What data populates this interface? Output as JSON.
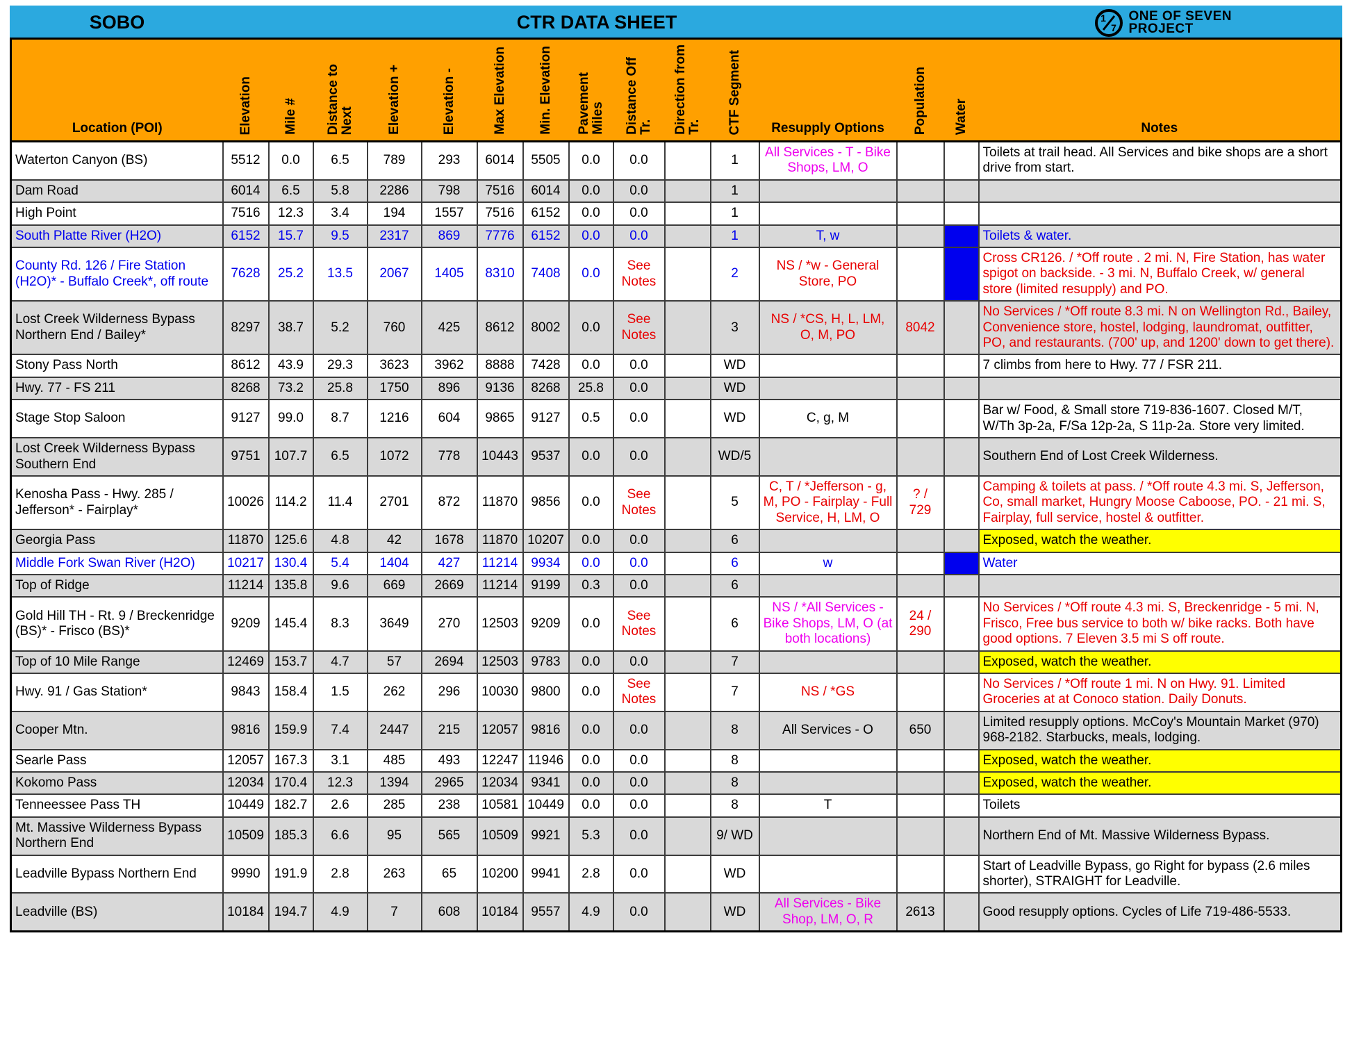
{
  "header": {
    "direction": "SOBO",
    "title": "CTR DATA SHEET",
    "logo_mark_numerator": "1",
    "logo_mark_denominator": "7",
    "logo_line1": "ONE OF SEVEN",
    "logo_line2": "PROJECT"
  },
  "colors": {
    "top_bar": "#2BA9DF",
    "header_bg": "#FFA000",
    "row_shade": "#D9D9D9",
    "black": "#000000",
    "blue": "#0000EE",
    "red": "#E80000",
    "magenta": "#EE00EE",
    "water_fill": "#0000EE",
    "highlight_yellow": "#FFFF00"
  },
  "columns": [
    {
      "key": "location",
      "label": "Location (POI)",
      "rotated": false
    },
    {
      "key": "elevation",
      "label": "Elevation",
      "rotated": true
    },
    {
      "key": "mile",
      "label": "Mile #",
      "rotated": true
    },
    {
      "key": "dist_next",
      "label": "Distance to\nNext",
      "rotated": true
    },
    {
      "key": "elev_plus",
      "label": "Elevation +",
      "rotated": true
    },
    {
      "key": "elev_minus",
      "label": "Elevation -",
      "rotated": true
    },
    {
      "key": "max_elev",
      "label": "Max Elevation",
      "rotated": true
    },
    {
      "key": "min_elev",
      "label": "Min. Elevation",
      "rotated": true
    },
    {
      "key": "pavement",
      "label": "Pavement\nMiles",
      "rotated": true
    },
    {
      "key": "dist_off",
      "label": "Distance Off\nTr.",
      "rotated": true
    },
    {
      "key": "direction",
      "label": "Direction from\nTr.",
      "rotated": true
    },
    {
      "key": "segment",
      "label": "CTF Segment",
      "rotated": true
    },
    {
      "key": "resupply",
      "label": "Resupply Options",
      "rotated": false
    },
    {
      "key": "population",
      "label": "Population",
      "rotated": true
    },
    {
      "key": "water",
      "label": "Water",
      "rotated": true
    },
    {
      "key": "notes",
      "label": "Notes",
      "rotated": false
    }
  ],
  "rows": [
    {
      "location": "Waterton Canyon (BS)",
      "values": {
        "elevation": "5512",
        "mile": "0.0",
        "dist_next": "6.5",
        "elev_plus": "789",
        "elev_minus": "293",
        "max_elev": "6014",
        "min_elev": "5505",
        "pavement": "0.0",
        "dist_off": "0.0",
        "direction": "",
        "segment": "1"
      },
      "resupply": {
        "text": "All Services - T - Bike Shops, LM, O",
        "color": "magenta"
      },
      "notes": {
        "text": "Toilets at trail head.  All Services and bike shops are a short drive from start."
      }
    },
    {
      "location": "Dam Road",
      "values": {
        "elevation": "6014",
        "mile": "6.5",
        "dist_next": "5.8",
        "elev_plus": "2286",
        "elev_minus": "798",
        "max_elev": "7516",
        "min_elev": "6014",
        "pavement": "0.0",
        "dist_off": "0.0",
        "direction": "",
        "segment": "1"
      }
    },
    {
      "location": "High Point",
      "values": {
        "elevation": "7516",
        "mile": "12.3",
        "dist_next": "3.4",
        "elev_plus": "194",
        "elev_minus": "1557",
        "max_elev": "7516",
        "min_elev": "6152",
        "pavement": "0.0",
        "dist_off": "0.0",
        "direction": "",
        "segment": "1"
      }
    },
    {
      "location": "South Platte River (H2O)",
      "base_color": "blue",
      "values": {
        "elevation": "6152",
        "mile": "15.7",
        "dist_next": "9.5",
        "elev_plus": "2317",
        "elev_minus": "869",
        "max_elev": "7776",
        "min_elev": "6152",
        "pavement": "0.0",
        "dist_off": "0.0",
        "direction": "",
        "segment": "1"
      },
      "resupply": {
        "text": "T, w",
        "color": "blue"
      },
      "water_fill": true,
      "notes": {
        "text": "Toilets & water.",
        "color": "blue"
      }
    },
    {
      "location": "County Rd. 126 / Fire Station (H2O)* - Buffalo Creek*, off route",
      "base_color": "blue",
      "values": {
        "elevation": "7628",
        "mile": "25.2",
        "dist_next": "13.5",
        "elev_plus": "2067",
        "elev_minus": "1405",
        "max_elev": "8310",
        "min_elev": "7408",
        "pavement": "0.0",
        "dist_off": "See Notes",
        "direction": "",
        "segment": "2"
      },
      "dist_off_color": "red",
      "resupply": {
        "text": "NS / *w - General Store, PO",
        "color": "red"
      },
      "water_fill": true,
      "notes": {
        "text": "Cross CR126. / *Off route . 2 mi. N, Fire Station, has water spigot on backside. -  3 mi. N, Buffalo Creek, w/ general store (limited resupply) and PO.",
        "color": "red"
      }
    },
    {
      "location": "Lost Creek Wilderness Bypass Northern End / Bailey*",
      "values": {
        "elevation": "8297",
        "mile": "38.7",
        "dist_next": "5.2",
        "elev_plus": "760",
        "elev_minus": "425",
        "max_elev": "8612",
        "min_elev": "8002",
        "pavement": "0.0",
        "dist_off": "See Notes",
        "direction": "",
        "segment": "3"
      },
      "dist_off_color": "red",
      "resupply": {
        "text": "NS / *CS, H, L, LM, O, M, PO",
        "color": "red"
      },
      "population": {
        "text": "8042",
        "color": "red"
      },
      "notes": {
        "text": "No Services / *Off route 8.3 mi. N on Wellington Rd., Bailey, Convenience store, hostel, lodging, laundromat, outfitter, PO, and restaurants. (700' up, and 1200' down to get there).",
        "color": "red"
      }
    },
    {
      "location": "Stony Pass North",
      "values": {
        "elevation": "8612",
        "mile": "43.9",
        "dist_next": "29.3",
        "elev_plus": "3623",
        "elev_minus": "3962",
        "max_elev": "8888",
        "min_elev": "7428",
        "pavement": "0.0",
        "dist_off": "0.0",
        "direction": "",
        "segment": "WD"
      },
      "notes": {
        "text": "7 climbs from here to Hwy. 77 / FSR 211."
      }
    },
    {
      "location": "Hwy. 77 - FS 211",
      "values": {
        "elevation": "8268",
        "mile": "73.2",
        "dist_next": "25.8",
        "elev_plus": "1750",
        "elev_minus": "896",
        "max_elev": "9136",
        "min_elev": "8268",
        "pavement": "25.8",
        "dist_off": "0.0",
        "direction": "",
        "segment": "WD"
      }
    },
    {
      "location": "Stage Stop Saloon",
      "values": {
        "elevation": "9127",
        "mile": "99.0",
        "dist_next": "8.7",
        "elev_plus": "1216",
        "elev_minus": "604",
        "max_elev": "9865",
        "min_elev": "9127",
        "pavement": "0.5",
        "dist_off": "0.0",
        "direction": "",
        "segment": "WD"
      },
      "resupply": {
        "text": "C, g, M"
      },
      "notes": {
        "text": "Bar w/ Food, & Small store 719-836-1607. Closed M/T, W/Th 3p-2a, F/Sa 12p-2a, S 11p-2a. Store very limited."
      }
    },
    {
      "location": "Lost Creek Wilderness Bypass Southern End",
      "values": {
        "elevation": "9751",
        "mile": "107.7",
        "dist_next": "6.5",
        "elev_plus": "1072",
        "elev_minus": "778",
        "max_elev": "10443",
        "min_elev": "9537",
        "pavement": "0.0",
        "dist_off": "0.0",
        "direction": "",
        "segment": "WD/5"
      },
      "notes": {
        "text": "Southern End of Lost Creek Wilderness."
      }
    },
    {
      "location": "Kenosha Pass - Hwy. 285 / Jefferson* - Fairplay*",
      "values": {
        "elevation": "10026",
        "mile": "114.2",
        "dist_next": "11.4",
        "elev_plus": "2701",
        "elev_minus": "872",
        "max_elev": "11870",
        "min_elev": "9856",
        "pavement": "0.0",
        "dist_off": "See Notes",
        "direction": "",
        "segment": "5"
      },
      "dist_off_color": "red",
      "resupply": {
        "text": "C, T / *Jefferson - g, M, PO - Fairplay - Full Service, H, LM, O",
        "color": "red"
      },
      "population": {
        "text": "? / 729",
        "color": "red"
      },
      "notes": {
        "text": "Camping & toilets at pass. / *Off route 4.3 mi. S, Jefferson, Co, small market, Hungry Moose Caboose, PO. - 21 mi. S, Fairplay, full service, hostel & outfitter.",
        "color": "red"
      }
    },
    {
      "location": "Georgia Pass",
      "values": {
        "elevation": "11870",
        "mile": "125.6",
        "dist_next": "4.8",
        "elev_plus": "42",
        "elev_minus": "1678",
        "max_elev": "11870",
        "min_elev": "10207",
        "pavement": "0.0",
        "dist_off": "0.0",
        "direction": "",
        "segment": "6"
      },
      "notes": {
        "text": "Exposed, watch the weather.",
        "highlight": true
      }
    },
    {
      "location": "Middle Fork Swan River (H2O)",
      "base_color": "blue",
      "values": {
        "elevation": "10217",
        "mile": "130.4",
        "dist_next": "5.4",
        "elev_plus": "1404",
        "elev_minus": "427",
        "max_elev": "11214",
        "min_elev": "9934",
        "pavement": "0.0",
        "dist_off": "0.0",
        "direction": "",
        "segment": "6"
      },
      "resupply": {
        "text": "w",
        "color": "blue"
      },
      "water_fill": true,
      "notes": {
        "text": "Water",
        "color": "blue"
      }
    },
    {
      "location": "Top of Ridge",
      "values": {
        "elevation": "11214",
        "mile": "135.8",
        "dist_next": "9.6",
        "elev_plus": "669",
        "elev_minus": "2669",
        "max_elev": "11214",
        "min_elev": "9199",
        "pavement": "0.3",
        "dist_off": "0.0",
        "direction": "",
        "segment": "6"
      }
    },
    {
      "location": "Gold Hill TH - Rt. 9 / Breckenridge (BS)* - Frisco (BS)*",
      "values": {
        "elevation": "9209",
        "mile": "145.4",
        "dist_next": "8.3",
        "elev_plus": "3649",
        "elev_minus": "270",
        "max_elev": "12503",
        "min_elev": "9209",
        "pavement": "0.0",
        "dist_off": "See Notes",
        "direction": "",
        "segment": "6"
      },
      "dist_off_color": "red",
      "resupply": {
        "text": "NS / *All Services - Bike Shops, LM, O (at both locations)",
        "color": "magenta"
      },
      "population": {
        "text": "24 / 290",
        "color": "red"
      },
      "notes": {
        "text": "No Services / *Off route 4.3 mi. S, Breckenridge  - 5 mi. N, Frisco, Free bus service to both w/ bike racks. Both have good options. 7 Eleven 3.5 mi S off route.",
        "color": "red"
      }
    },
    {
      "location": "Top of 10 Mile Range",
      "values": {
        "elevation": "12469",
        "mile": "153.7",
        "dist_next": "4.7",
        "elev_plus": "57",
        "elev_minus": "2694",
        "max_elev": "12503",
        "min_elev": "9783",
        "pavement": "0.0",
        "dist_off": "0.0",
        "direction": "",
        "segment": "7"
      },
      "notes": {
        "text": "Exposed, watch the weather.",
        "highlight": true
      }
    },
    {
      "location": "Hwy. 91 / Gas Station*",
      "values": {
        "elevation": "9843",
        "mile": "158.4",
        "dist_next": "1.5",
        "elev_plus": "262",
        "elev_minus": "296",
        "max_elev": "10030",
        "min_elev": "9800",
        "pavement": "0.0",
        "dist_off": "See Notes",
        "direction": "",
        "segment": "7"
      },
      "dist_off_color": "red",
      "resupply": {
        "text": "NS / *GS",
        "color": "red"
      },
      "notes": {
        "text": "No Services / *Off route 1 mi. N on Hwy. 91. Limited Groceries at at Conoco station. Daily Donuts.",
        "color": "red"
      }
    },
    {
      "location": "Cooper Mtn.",
      "values": {
        "elevation": "9816",
        "mile": "159.9",
        "dist_next": "7.4",
        "elev_plus": "2447",
        "elev_minus": "215",
        "max_elev": "12057",
        "min_elev": "9816",
        "pavement": "0.0",
        "dist_off": "0.0",
        "direction": "",
        "segment": "8"
      },
      "resupply": {
        "text": "All Services - O"
      },
      "population": {
        "text": "650"
      },
      "notes": {
        "text": "Limited resupply options. McCoy's Mountain Market (970) 968-2182. Starbucks, meals, lodging."
      }
    },
    {
      "location": "Searle Pass",
      "values": {
        "elevation": "12057",
        "mile": "167.3",
        "dist_next": "3.1",
        "elev_plus": "485",
        "elev_minus": "493",
        "max_elev": "12247",
        "min_elev": "11946",
        "pavement": "0.0",
        "dist_off": "0.0",
        "direction": "",
        "segment": "8"
      },
      "notes": {
        "text": "Exposed, watch the weather.",
        "highlight": true
      }
    },
    {
      "location": "Kokomo Pass",
      "values": {
        "elevation": "12034",
        "mile": "170.4",
        "dist_next": "12.3",
        "elev_plus": "1394",
        "elev_minus": "2965",
        "max_elev": "12034",
        "min_elev": "9341",
        "pavement": "0.0",
        "dist_off": "0.0",
        "direction": "",
        "segment": "8"
      },
      "notes": {
        "text": "Exposed, watch the weather.",
        "highlight": true
      }
    },
    {
      "location": "Tenneessee Pass TH",
      "values": {
        "elevation": "10449",
        "mile": "182.7",
        "dist_next": "2.6",
        "elev_plus": "285",
        "elev_minus": "238",
        "max_elev": "10581",
        "min_elev": "10449",
        "pavement": "0.0",
        "dist_off": "0.0",
        "direction": "",
        "segment": "8"
      },
      "resupply": {
        "text": "T"
      },
      "notes": {
        "text": "Toilets"
      }
    },
    {
      "location": "Mt. Massive Wilderness Bypass Northern End",
      "values": {
        "elevation": "10509",
        "mile": "185.3",
        "dist_next": "6.6",
        "elev_plus": "95",
        "elev_minus": "565",
        "max_elev": "10509",
        "min_elev": "9921",
        "pavement": "5.3",
        "dist_off": "0.0",
        "direction": "",
        "segment": "9/ WD"
      },
      "notes": {
        "text": "Northern End of Mt. Massive Wilderness Bypass."
      }
    },
    {
      "location": "Leadville Bypass Northern End",
      "values": {
        "elevation": "9990",
        "mile": "191.9",
        "dist_next": "2.8",
        "elev_plus": "263",
        "elev_minus": "65",
        "max_elev": "10200",
        "min_elev": "9941",
        "pavement": "2.8",
        "dist_off": "0.0",
        "direction": "",
        "segment": "WD"
      },
      "notes": {
        "text": "Start of Leadville Bypass, go Right for bypass (2.6 miles shorter), STRAIGHT for Leadville."
      }
    },
    {
      "location": "Leadville (BS)",
      "values": {
        "elevation": "10184",
        "mile": "194.7",
        "dist_next": "4.9",
        "elev_plus": "7",
        "elev_minus": "608",
        "max_elev": "10184",
        "min_elev": "9557",
        "pavement": "4.9",
        "dist_off": "0.0",
        "direction": "",
        "segment": "WD"
      },
      "resupply": {
        "text": "All Services - Bike Shop, LM, O, R",
        "color": "magenta"
      },
      "population": {
        "text": "2613"
      },
      "notes": {
        "text": "Good resupply options. Cycles of Life 719-486-5533."
      }
    }
  ]
}
